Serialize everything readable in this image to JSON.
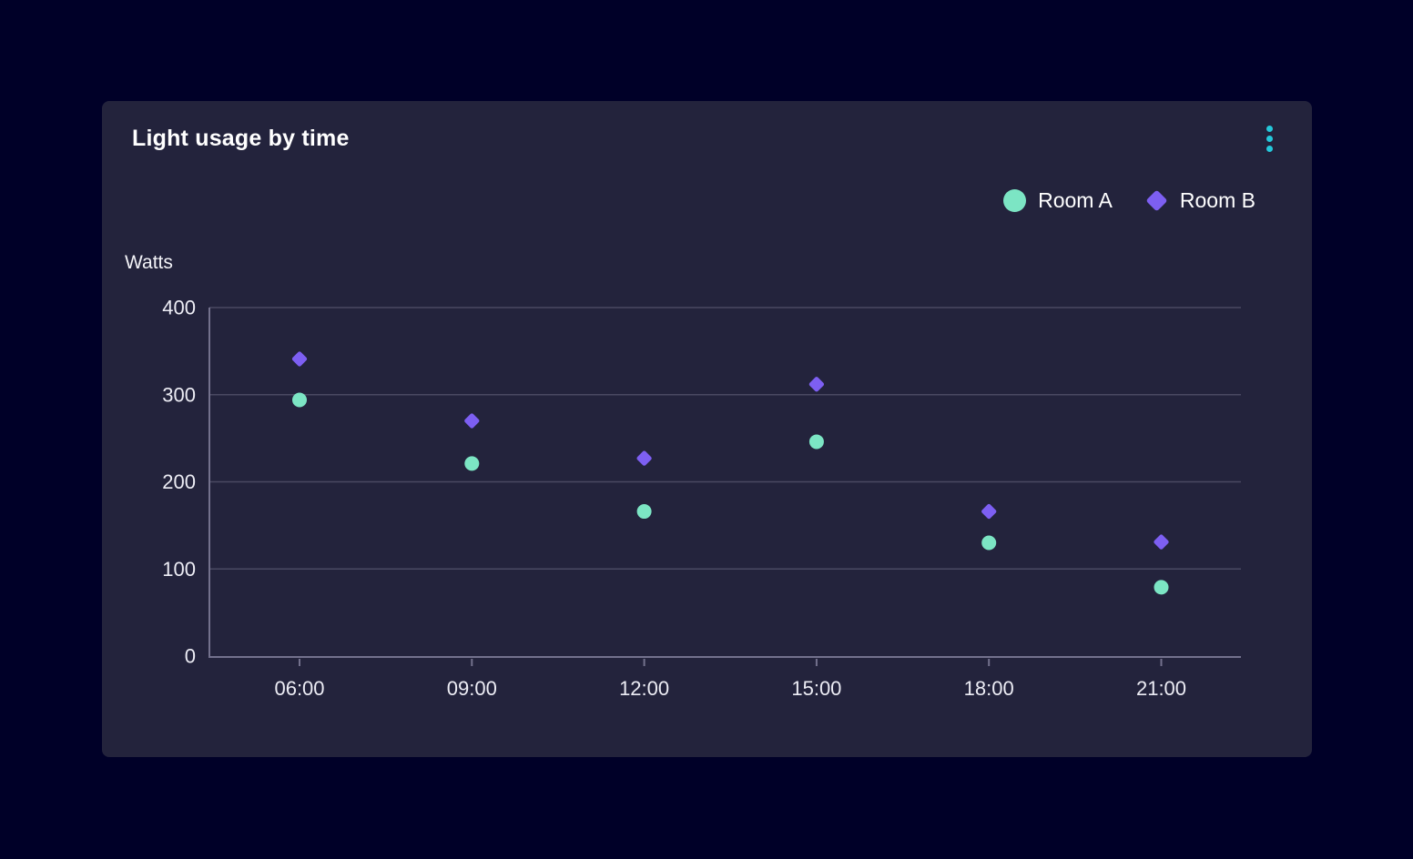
{
  "card": {
    "title": "Light usage by time",
    "menu_icon": "kebab-menu-icon"
  },
  "colors": {
    "page_background": "#000028",
    "card_background": "#23233C",
    "gridline": "#4A4962",
    "axis_line": "#73718D",
    "tick_text": "#EDEDF5",
    "title_text": "#FFFFFF",
    "room_a": "#7CE5C4",
    "room_b": "#7D5FF2",
    "menu_accent": "#24C7DA"
  },
  "chart_data": {
    "type": "scatter",
    "title": "Light usage by time",
    "xlabel": "",
    "ylabel": "Watts",
    "categories": [
      "06:00",
      "09:00",
      "12:00",
      "15:00",
      "18:00",
      "21:00"
    ],
    "series": [
      {
        "name": "Room A",
        "marker": "circle",
        "color": "#7CE5C4",
        "values": [
          294,
          221,
          166,
          246,
          130,
          79
        ]
      },
      {
        "name": "Room B",
        "marker": "diamond",
        "color": "#7D5FF2",
        "values": [
          341,
          270,
          227,
          312,
          166,
          131
        ]
      }
    ],
    "ylim": [
      0,
      400
    ],
    "yticks": [
      0,
      100,
      200,
      300,
      400
    ],
    "grid": "horizontal-only",
    "legend_position": "top-right"
  }
}
